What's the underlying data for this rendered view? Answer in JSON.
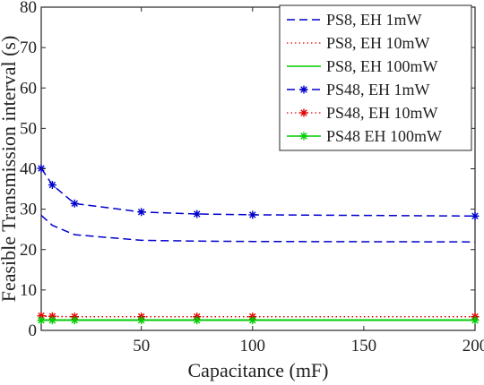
{
  "chart_data": {
    "type": "line",
    "title": "",
    "xlabel": "Capacitance (mF)",
    "ylabel": "Feasible Transmission interval (s)",
    "xlim": [
      5,
      200
    ],
    "ylim": [
      0,
      80
    ],
    "xticks": [
      50,
      100,
      150,
      200
    ],
    "yticks": [
      0,
      10,
      20,
      30,
      40,
      50,
      60,
      70,
      80
    ],
    "grid": false,
    "legend_position": "top-right",
    "series": [
      {
        "name": "PS8, EH 1mW",
        "color": "#0000cc",
        "line_style": "dashed",
        "marker": "none",
        "x": [
          5,
          10,
          20,
          50,
          75,
          100,
          200
        ],
        "y": [
          28.5,
          26.0,
          23.7,
          22.3,
          22.1,
          22.0,
          21.9
        ]
      },
      {
        "name": "PS8, EH 10mW",
        "color": "#e00000",
        "line_style": "dotted",
        "marker": "none",
        "x": [
          5,
          10,
          20,
          50,
          75,
          100,
          200
        ],
        "y": [
          3.5,
          3.4,
          3.4,
          3.4,
          3.4,
          3.4,
          3.4
        ]
      },
      {
        "name": "PS8, EH 100mW",
        "color": "#00cc00",
        "line_style": "solid",
        "marker": "none",
        "x": [
          5,
          10,
          20,
          50,
          75,
          100,
          200
        ],
        "y": [
          2.6,
          2.6,
          2.6,
          2.6,
          2.6,
          2.6,
          2.6
        ]
      },
      {
        "name": "PS48, EH 1mW",
        "color": "#0000cc",
        "line_style": "dashed",
        "marker": "star",
        "x": [
          5,
          10,
          20,
          50,
          75,
          100,
          200
        ],
        "y": [
          40.1,
          36.0,
          31.4,
          29.3,
          28.8,
          28.6,
          28.3
        ]
      },
      {
        "name": "PS48, EH 10mW",
        "color": "#e00000",
        "line_style": "dotted",
        "marker": "star",
        "x": [
          5,
          10,
          20,
          50,
          75,
          100,
          200
        ],
        "y": [
          3.6,
          3.5,
          3.4,
          3.4,
          3.4,
          3.4,
          3.4
        ]
      },
      {
        "name": "PS48 EH 100mW",
        "color": "#00cc00",
        "line_style": "solid",
        "marker": "star",
        "x": [
          5,
          10,
          20,
          50,
          75,
          100,
          200
        ],
        "y": [
          2.5,
          2.5,
          2.5,
          2.5,
          2.5,
          2.5,
          2.5
        ]
      }
    ]
  }
}
